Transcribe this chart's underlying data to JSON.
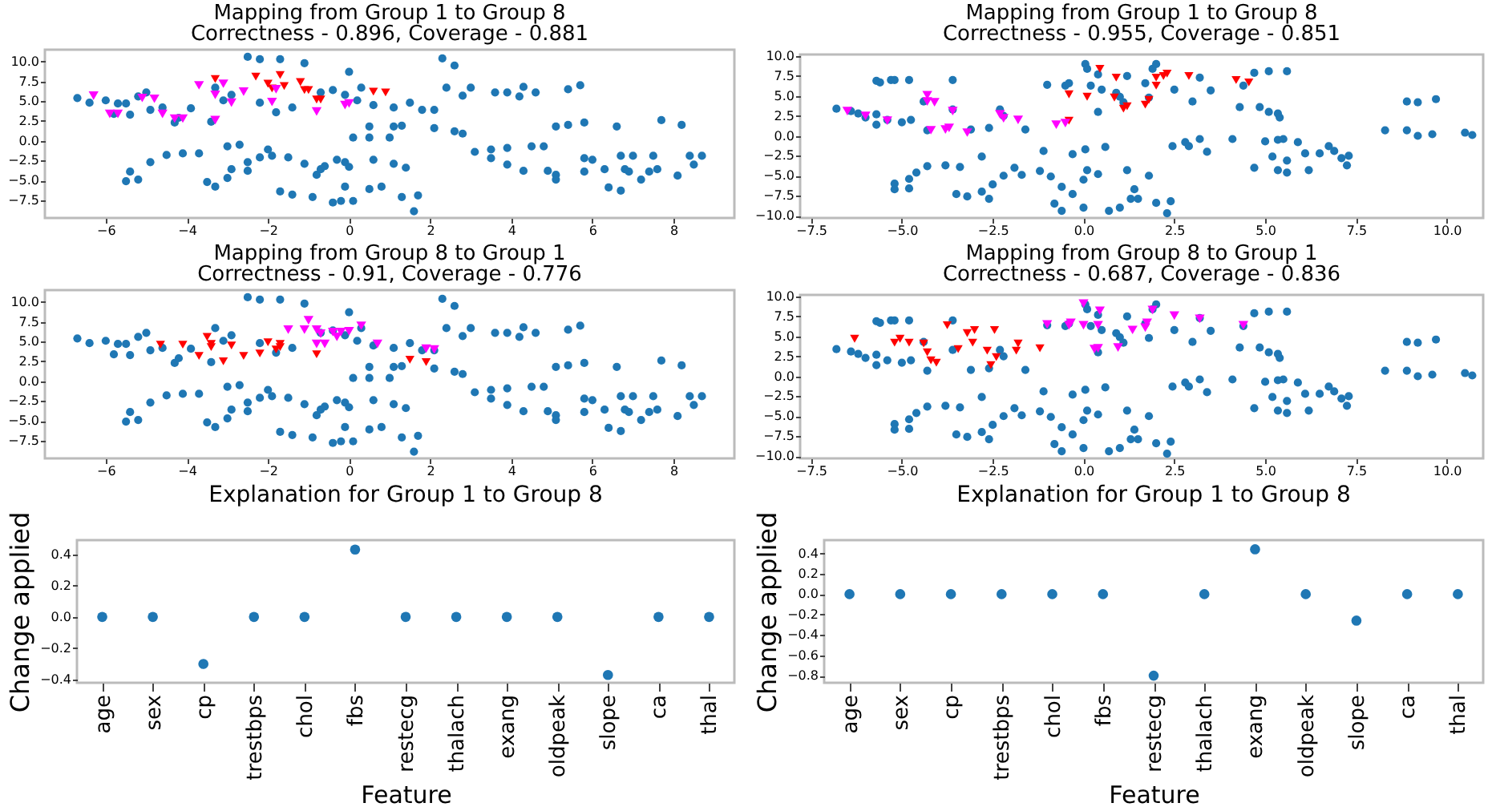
{
  "chart_data": [
    {
      "type": "scatter",
      "title": "Mapping from Group 1 to Group 8",
      "subtitle": "Correctness - 0.896, Coverage - 0.881",
      "xlim": [
        -7.5,
        9.5
      ],
      "xticks": [
        {
          "value": -6,
          "label": "−6"
        },
        {
          "value": -4,
          "label": "−4"
        },
        {
          "value": -2,
          "label": "−2"
        },
        0,
        2,
        4,
        6,
        8
      ],
      "ylim": [
        -9.75,
        11.5
      ],
      "yticks": [
        {
          "value": -7.5,
          "label": "−7.5"
        },
        {
          "value": -5,
          "label": "−5.0"
        },
        {
          "value": -2.5,
          "label": "−2.5"
        },
        {
          "value": 0,
          "label": "0.0"
        },
        2.5,
        {
          "value": 5,
          "label": "5.0"
        },
        7.5,
        {
          "value": 10,
          "label": "10.0"
        }
      ],
      "series": [
        {
          "color": "#1f77b4",
          "marker": "circle",
          "x": [
            -6.7,
            -6.4,
            -6.0,
            -5.7,
            -5.5,
            -5.2,
            -5.0,
            -4.9,
            -4.6,
            -4.3,
            -3.9,
            -3.3,
            -3.1,
            -2.9,
            -2.5,
            -2.2,
            -1.7,
            -2.2,
            -1.8,
            -1.4,
            -1.1,
            -0.7,
            -0.4,
            -0.1,
            0.0,
            0.2,
            0.3,
            0.6,
            1.1,
            1.5,
            1.8,
            2.1,
            2.3,
            2.6,
            2.8,
            3.0,
            2.4,
            3.6,
            3.9,
            4.2,
            4.3,
            4.6,
            5.4,
            5.7,
            0.5,
            1.1,
            1.3,
            1.0,
            0.5,
            0.1,
            2.1,
            2.6,
            2.8,
            5.1,
            5.4,
            5.8,
            6.6,
            7.7,
            8.2,
            -5.4,
            -5.8,
            -4.2,
            -3.4,
            -5.4,
            -5.2,
            -5.5,
            -4.9,
            -4.5,
            -4.1,
            -3.7,
            -3.5,
            -3.3,
            -3.0,
            -3.0,
            -2.7,
            -2.9,
            -2.5,
            -2.5,
            -2.2,
            -1.9,
            -2.0,
            -1.5,
            -1.7,
            -1.4,
            -1.1,
            -0.8,
            -0.7,
            -0.6,
            -0.3,
            -0.1,
            0.0,
            -0.4,
            -0.2,
            0.1,
            -0.9,
            -0.1,
            0.5,
            0.8,
            0.6,
            1.1,
            1.4,
            1.3,
            1.7,
            1.6,
            3.1,
            3.5,
            3.9,
            3.5,
            3.9,
            4.3,
            4.5,
            4.8,
            4.9,
            5.1,
            5.1,
            5.8,
            5.8,
            6.0,
            6.3,
            6.4,
            6.7,
            6.7,
            7.0,
            6.9,
            7.2,
            7.4,
            7.6,
            8.1,
            8.4,
            8.7,
            8.5,
            6.8,
            7.5
          ],
          "values": [
            5.4,
            4.8,
            5.1,
            4.7,
            4.7,
            5.6,
            6.1,
            3.9,
            4.2,
            2.3,
            4.1,
            6.7,
            5.1,
            5.8,
            10.6,
            10.3,
            10.3,
            4.8,
            3.6,
            4.2,
            9.8,
            6.1,
            6.4,
            5.8,
            8.7,
            5.1,
            6.7,
            4.5,
            4.2,
            4.8,
            3.9,
            3.9,
            10.4,
            9.5,
            5.7,
            6.7,
            6.7,
            6.1,
            6.1,
            5.6,
            6.8,
            6.1,
            6.5,
            7.0,
            1.8,
            1.8,
            1.9,
            0.4,
            0.4,
            0.4,
            1.6,
            1.2,
            0.9,
            1.8,
            2.0,
            2.3,
            1.8,
            2.6,
            2.0,
            3.3,
            3.4,
            2.9,
            2.4,
            -3.9,
            -4.9,
            -5.1,
            -2.7,
            -1.8,
            -1.6,
            -1.6,
            -5.2,
            -5.8,
            -4.7,
            -0.7,
            -0.5,
            -3.6,
            -3.8,
            -2.7,
            -2.1,
            -1.9,
            -1.1,
            -2.1,
            -6.4,
            -6.8,
            -2.9,
            -4.3,
            -3.6,
            -3.2,
            -2.4,
            -2.7,
            -3.3,
            -7.8,
            -7.6,
            -7.6,
            -7.1,
            -5.8,
            -6.1,
            -5.8,
            -2.4,
            -2.9,
            -3.4,
            -7.1,
            -6.9,
            -8.9,
            -1.4,
            -1.1,
            -0.9,
            -2.2,
            -3.0,
            -3.8,
            -0.7,
            -0.7,
            -3.8,
            -4.3,
            -4.9,
            -2.2,
            -3.9,
            -2.4,
            -3.6,
            -5.9,
            -6.3,
            -1.9,
            -1.9,
            -3.9,
            -4.9,
            -3.9,
            -3.6,
            -4.4,
            -1.9,
            -1.9,
            -3.0,
            -3.6,
            -1.9
          ]
        },
        {
          "color": "#ff0000",
          "marker": "triangle",
          "x": [
            -3.3,
            -2.3,
            -1.7,
            -2.0,
            -1.7,
            -1.6,
            -1.2,
            -1.1,
            -1.0,
            -0.8,
            -0.7,
            0.6,
            0.9,
            -1.9
          ],
          "values": [
            7.8,
            8.1,
            8.3,
            7.2,
            null,
            6.9,
            7.4,
            6.4,
            6.4,
            5.2,
            5.2,
            6.2,
            6.1,
            6.6
          ]
        },
        {
          "color": "#ff00ff",
          "marker": "triangle",
          "x": [
            -6.3,
            -5.9,
            -5.7,
            -5.1,
            -4.8,
            -4.6,
            -4.3,
            -4.1,
            -3.7,
            -3.3,
            -3.1,
            -3.3,
            -2.9,
            -2.6,
            -1.9,
            -1.8,
            -0.8,
            -0.1,
            0.0
          ],
          "values": [
            5.7,
            3.4,
            3.4,
            5.4,
            5.3,
            3.4,
            2.8,
            2.8,
            7.0,
            5.8,
            7.2,
            2.6,
            4.8,
            6.2,
            4.9,
            6.5,
            3.7,
            4.5,
            4.7
          ]
        }
      ]
    },
    {
      "type": "scatter",
      "title": "Mapping from Group 1 to Group 8",
      "subtitle": "Correctness - 0.955, Coverage - 0.851",
      "xlim": [
        -7.8,
        11
      ],
      "xticks": [
        {
          "value": -7.5,
          "label": "−7.5"
        },
        {
          "value": -5,
          "label": "−5.0"
        },
        {
          "value": -2.5,
          "label": "−2.5"
        },
        {
          "value": 0,
          "label": "0.0"
        },
        2.5,
        {
          "value": 5,
          "label": "5.0"
        },
        7.5,
        {
          "value": 10,
          "label": "10.0"
        }
      ],
      "ylim": [
        -10.3,
        10.2
      ],
      "yticks": [
        {
          "value": -10,
          "label": "−10.0"
        },
        {
          "value": -7.5,
          "label": "−7.5"
        },
        {
          "value": -5,
          "label": "−5.0"
        },
        {
          "value": -2.5,
          "label": "−2.5"
        },
        {
          "value": 0,
          "label": "0.0"
        },
        2.5,
        {
          "value": 5,
          "label": "5.0"
        },
        7.5,
        {
          "value": 10,
          "label": "10.0"
        }
      ],
      "series": [
        {
          "color": "#1f77b4",
          "marker": "circle",
          "x": [
            -6.8,
            -6.4,
            -6.2,
            -6.0,
            -5.7,
            -5.6,
            -5.3,
            -5.2,
            -4.8,
            -5.7,
            -5.7,
            -5.4,
            -5.0,
            -4.75,
            -4.4,
            -4.3,
            -3.6,
            -3.6,
            -3.1,
            -2.6,
            -2.3,
            -2.2,
            -1.6,
            -1.0,
            -0.5,
            -0.4,
            0.05,
            0.1,
            0.4,
            0.2,
            0.5,
            0.4,
            0.9,
            1.0,
            1.1,
            1.2,
            1.9,
            2.0,
            1.7,
            1.8,
            2.5,
            3.2,
            3.5,
            3.0,
            4.4,
            4.3,
            4.7,
            5.1,
            5.6,
            4.85,
            5.1,
            5.35,
            5.4,
            8.9,
            9.2,
            9.7,
            8.3,
            8.9,
            9.2,
            9.6,
            10.5,
            10.7,
            -5.2,
            -5.2,
            -4.8,
            -4.8,
            -4.6,
            -4.3,
            -3.8,
            -3.4,
            -2.8,
            -3.5,
            -3.2,
            -2.8,
            -2.6,
            -2.5,
            -2.2,
            -1.9,
            -1.7,
            -1.2,
            -1.1,
            -0.9,
            -0.6,
            -0.8,
            -0.6,
            -0.3,
            0.05,
            0.1,
            0.0,
            -0.3,
            0.0,
            0.4,
            0.6,
            0.7,
            1.0,
            1.2,
            1.3,
            1.4,
            1.5,
            1.8,
            2.0,
            2.3,
            2.4,
            2.45,
            2.8,
            2.9,
            3.2,
            3.4,
            4.1,
            4.7,
            5.0,
            5.35,
            5.5,
            5.2,
            5.6,
            5.35,
            5.6,
            5.9,
            6.1,
            6.5,
            6.75,
            6.9,
            7.1,
            7.25,
            6.2,
            7.3
          ],
          "values": [
            3.4,
            3.1,
            2.8,
            2.3,
            6.9,
            6.7,
            7.0,
            7.0,
            7.0,
            1.4,
            2.7,
            2.0,
            1.7,
            2.0,
            4.3,
            0.7,
            7.0,
            3.3,
            0.8,
            1.0,
            3.3,
            2.5,
            0.8,
            6.4,
            6.3,
            6.6,
            9.0,
            8.4,
            7.7,
            6.3,
            5.8,
            3.0,
            5.4,
            4.9,
            4.2,
            7.5,
            8.4,
            9.0,
            6.6,
            4.8,
            5.8,
            7.3,
            5.7,
            4.3,
            6.3,
            3.6,
            7.9,
            8.1,
            8.1,
            3.6,
            3.0,
            2.8,
            2.3,
            4.3,
            4.2,
            4.6,
            0.7,
            0.7,
            0.0,
            0.2,
            0.4,
            0.1,
            -6.0,
            -6.7,
            -6.6,
            -5.4,
            -4.6,
            -3.8,
            -3.7,
            -3.9,
            -2.6,
            -7.3,
            -7.6,
            -7.0,
            -7.9,
            -6.1,
            -5.0,
            -4.0,
            -4.9,
            -4.4,
            -1.9,
            -5.1,
            -6.4,
            -8.5,
            -9.4,
            -2.3,
            -1.7,
            -4.3,
            -5.5,
            -7.3,
            -9.0,
            -4.8,
            -1.4,
            -9.4,
            -9.0,
            -4.3,
            -7.9,
            -6.7,
            -7.9,
            -5.0,
            -8.4,
            -9.7,
            -8.2,
            -1.3,
            -0.8,
            -1.3,
            -0.4,
            -2.0,
            -0.4,
            -4.0,
            -0.7,
            -0.5,
            -0.4,
            -2.6,
            -3.1,
            -4.3,
            -4.6,
            -0.8,
            -2.2,
            -2.2,
            -1.3,
            -1.9,
            -2.8,
            -3.7,
            -4.3,
            -2.5
          ]
        },
        {
          "color": "#ff0000",
          "marker": "triangle",
          "x": [
            0.45,
            0.9,
            2.0,
            2.2,
            2.3,
            2.9,
            4.2,
            4.55,
            -0.4,
            0.1,
            0.85,
            1.1,
            1.2,
            1.7,
            1.8,
            2.0,
            -0.4
          ],
          "values": [
            8.4,
            7.3,
            7.3,
            7.5,
            7.8,
            7.5,
            7.0,
            6.7,
            5.2,
            4.9,
            4.8,
            3.4,
            3.7,
            3.9,
            4.5,
            6.3,
            1.9
          ]
        },
        {
          "color": "#ff00ff",
          "marker": "triangle",
          "x": [
            -6.5,
            -6.0,
            -5.4,
            -4.3,
            -4.3,
            -4.1,
            -4.2,
            -3.8,
            -3.7,
            -3.6,
            -3.2,
            -2.3,
            -2.2,
            -1.8,
            -0.75,
            -0.5
          ],
          "values": [
            3.1,
            2.5,
            1.9,
            5.1,
            4.3,
            4.2,
            0.7,
            0.8,
            1.0,
            3.1,
            0.4,
            2.7,
            2.2,
            2.0,
            1.4,
            1.6
          ]
        }
      ]
    },
    {
      "type": "scatter",
      "title": "Mapping from Group 8 to Group 1",
      "subtitle": "Correctness - 0.91, Coverage - 0.776",
      "xlim": [
        -7.5,
        9.5
      ],
      "xticks": [
        {
          "value": -6,
          "label": "−6"
        },
        {
          "value": -4,
          "label": "−4"
        },
        {
          "value": -2,
          "label": "−2"
        },
        0,
        2,
        4,
        6,
        8
      ],
      "ylim": [
        -9.75,
        11.5
      ],
      "yticks": [
        {
          "value": -7.5,
          "label": "−7.5"
        },
        {
          "value": -5,
          "label": "−5.0"
        },
        {
          "value": -2.5,
          "label": "−2.5"
        },
        {
          "value": 0,
          "label": "0.0"
        },
        2.5,
        {
          "value": 5,
          "label": "5.0"
        },
        7.5,
        {
          "value": 10,
          "label": "10.0"
        }
      ],
      "series": [
        {
          "color": "#1f77b4",
          "marker": "circle",
          "x": [
            -6.7,
            -6.4,
            -6.0,
            -5.7,
            -5.5,
            -5.2,
            -5.0,
            -4.9,
            -4.6,
            -4.3,
            -3.9,
            -3.3,
            -3.1,
            -2.9,
            -2.5,
            -2.2,
            -1.7,
            -2.2,
            -1.8,
            -1.4,
            -1.1,
            -0.7,
            -0.4,
            -0.1,
            0.0,
            0.2,
            0.3,
            0.6,
            1.1,
            1.5,
            1.8,
            2.1,
            2.3,
            2.6,
            2.8,
            3.0,
            2.4,
            3.6,
            3.9,
            4.2,
            4.3,
            4.6,
            5.4,
            5.7,
            0.5,
            1.1,
            1.3,
            1.0,
            0.5,
            0.1,
            2.1,
            2.6,
            2.8,
            5.1,
            5.4,
            5.8,
            6.6,
            7.7,
            8.2,
            -5.4,
            -5.8,
            -4.2,
            -3.4,
            -5.4,
            -5.2,
            -5.5,
            -4.9,
            -4.5,
            -4.1,
            -3.7,
            -3.5,
            -3.3,
            -3.0,
            -3.0,
            -2.7,
            -2.9,
            -2.5,
            -2.5,
            -2.2,
            -1.9,
            -2.0,
            -1.5,
            -1.7,
            -1.4,
            -1.1,
            -0.8,
            -0.7,
            -0.6,
            -0.3,
            -0.1,
            0.0,
            -0.4,
            -0.2,
            0.1,
            -0.9,
            -0.1,
            0.5,
            0.8,
            0.6,
            1.1,
            1.4,
            1.3,
            1.7,
            1.6,
            3.1,
            3.5,
            3.9,
            3.5,
            3.9,
            4.3,
            4.5,
            4.8,
            4.9,
            5.1,
            5.1,
            5.8,
            5.8,
            6.0,
            6.3,
            6.4,
            6.7,
            6.7,
            7.0,
            6.9,
            7.2,
            7.4,
            7.6,
            8.1,
            8.4,
            8.7,
            8.5,
            6.8,
            7.5
          ],
          "values": [
            5.4,
            4.8,
            5.1,
            4.7,
            4.7,
            5.6,
            6.1,
            3.9,
            4.2,
            2.3,
            4.1,
            6.7,
            5.1,
            5.8,
            10.6,
            10.3,
            10.3,
            4.8,
            3.6,
            4.2,
            9.8,
            6.1,
            6.4,
            5.8,
            8.7,
            5.1,
            6.7,
            4.5,
            4.2,
            4.8,
            3.9,
            3.9,
            10.4,
            9.5,
            5.7,
            6.7,
            6.7,
            6.1,
            6.1,
            5.6,
            6.8,
            6.1,
            6.5,
            7.0,
            1.8,
            1.8,
            1.9,
            0.4,
            0.4,
            0.4,
            1.6,
            1.2,
            0.9,
            1.8,
            2.0,
            2.3,
            1.8,
            2.6,
            2.0,
            3.3,
            3.4,
            2.9,
            2.4,
            -3.9,
            -4.9,
            -5.1,
            -2.7,
            -1.8,
            -1.6,
            -1.6,
            -5.2,
            -5.8,
            -4.7,
            -0.7,
            -0.5,
            -3.6,
            -3.8,
            -2.7,
            -2.1,
            -1.9,
            -1.1,
            -2.1,
            -6.4,
            -6.8,
            -2.9,
            -4.3,
            -3.6,
            -3.2,
            -2.4,
            -2.7,
            -3.3,
            -7.8,
            -7.6,
            -7.6,
            -7.1,
            -5.8,
            -6.1,
            -5.8,
            -2.4,
            -2.9,
            -3.4,
            -7.1,
            -6.9,
            -8.9,
            -1.4,
            -1.1,
            -0.9,
            -2.2,
            -3.0,
            -3.8,
            -0.7,
            -0.7,
            -3.8,
            -4.3,
            -4.9,
            -2.2,
            -3.9,
            -2.4,
            -3.6,
            -5.9,
            -6.3,
            -1.9,
            -1.9,
            -3.9,
            -4.9,
            -3.9,
            -3.6,
            -4.4,
            -1.9,
            -1.9,
            -3.0,
            -3.6,
            -1.9
          ]
        },
        {
          "color": "#ff0000",
          "marker": "triangle",
          "x": [
            -4.65,
            -4.1,
            -3.7,
            -3.5,
            -3.4,
            -3.4,
            -3.1,
            -2.9,
            -2.6,
            -2.2,
            -2.0,
            -1.7,
            -1.7,
            -1.8,
            -0.8,
            1.5,
            1.9
          ],
          "values": [
            4.6,
            4.6,
            3.2,
            5.6,
            4.7,
            4.3,
            2.5,
            4.5,
            3.2,
            3.5,
            4.9,
            4.3,
            4.7,
            4.0,
            3.4,
            2.7,
            2.4
          ]
        },
        {
          "color": "#ff00ff",
          "marker": "triangle",
          "x": [
            -1.5,
            -1.0,
            -1.1,
            -0.8,
            -0.7,
            -0.4,
            -0.2,
            -0.3,
            0.0,
            -0.8,
            -0.6,
            0.3,
            0.7,
            1.9,
            2.1
          ],
          "values": [
            6.5,
            7.7,
            6.5,
            6.5,
            6.0,
            6.2,
            6.2,
            5.6,
            6.3,
            4.7,
            4.7,
            7.0,
            4.7,
            4.1,
            4.0
          ]
        }
      ]
    },
    {
      "type": "scatter",
      "title": "Mapping from Group 8 to Group 1",
      "subtitle": "Correctness - 0.687, Coverage - 0.836",
      "xlim": [
        -7.8,
        11
      ],
      "xticks": [
        {
          "value": -7.5,
          "label": "−7.5"
        },
        {
          "value": -5,
          "label": "−5.0"
        },
        {
          "value": -2.5,
          "label": "−2.5"
        },
        {
          "value": 0,
          "label": "0.0"
        },
        2.5,
        {
          "value": 5,
          "label": "5.0"
        },
        7.5,
        {
          "value": 10,
          "label": "10.0"
        }
      ],
      "ylim": [
        -10.3,
        10.2
      ],
      "yticks": [
        {
          "value": -10,
          "label": "−10.0"
        },
        {
          "value": -7.5,
          "label": "−7.5"
        },
        {
          "value": -5,
          "label": "−5.0"
        },
        {
          "value": -2.5,
          "label": "−2.5"
        },
        {
          "value": 0,
          "label": "0.0"
        },
        2.5,
        {
          "value": 5,
          "label": "5.0"
        },
        7.5,
        {
          "value": 10,
          "label": "10.0"
        }
      ],
      "series": [
        {
          "color": "#1f77b4",
          "marker": "circle",
          "x": [
            -6.8,
            -6.4,
            -6.2,
            -6.0,
            -5.7,
            -5.6,
            -5.3,
            -5.2,
            -4.8,
            -5.7,
            -5.7,
            -5.4,
            -5.0,
            -4.75,
            -4.4,
            -4.3,
            -3.6,
            -3.6,
            -3.1,
            -2.6,
            -2.3,
            -2.2,
            -1.6,
            -1.0,
            -0.5,
            -0.4,
            0.05,
            0.1,
            0.4,
            0.2,
            0.5,
            0.4,
            0.9,
            1.0,
            1.1,
            1.2,
            1.9,
            2.0,
            1.7,
            1.8,
            2.5,
            3.2,
            3.5,
            3.0,
            4.4,
            4.3,
            4.7,
            5.1,
            5.6,
            4.85,
            5.1,
            5.35,
            5.4,
            8.9,
            9.2,
            9.7,
            8.3,
            8.9,
            9.2,
            9.6,
            10.5,
            10.7,
            -5.2,
            -5.2,
            -4.8,
            -4.8,
            -4.6,
            -4.3,
            -3.8,
            -3.4,
            -2.8,
            -3.5,
            -3.2,
            -2.8,
            -2.6,
            -2.5,
            -2.2,
            -1.9,
            -1.7,
            -1.2,
            -1.1,
            -0.9,
            -0.6,
            -0.8,
            -0.6,
            -0.3,
            0.05,
            0.1,
            0.0,
            -0.3,
            0.0,
            0.4,
            0.6,
            0.7,
            1.0,
            1.2,
            1.3,
            1.4,
            1.5,
            1.8,
            2.0,
            2.3,
            2.4,
            2.45,
            2.8,
            2.9,
            3.2,
            3.4,
            4.1,
            4.7,
            5.0,
            5.35,
            5.5,
            5.2,
            5.6,
            5.35,
            5.6,
            5.9,
            6.1,
            6.5,
            6.75,
            6.9,
            7.1,
            7.25,
            6.2,
            7.3
          ],
          "values": [
            3.4,
            3.1,
            2.8,
            2.3,
            6.9,
            6.7,
            7.0,
            7.0,
            7.0,
            1.4,
            2.7,
            2.0,
            1.7,
            2.0,
            4.3,
            0.7,
            7.0,
            3.3,
            0.8,
            1.0,
            3.3,
            2.5,
            0.8,
            6.4,
            6.3,
            6.6,
            9.0,
            8.4,
            7.7,
            6.3,
            5.8,
            3.0,
            5.4,
            4.9,
            4.2,
            7.5,
            8.4,
            9.0,
            6.6,
            4.8,
            5.8,
            7.3,
            5.7,
            4.3,
            6.3,
            3.6,
            7.9,
            8.1,
            8.1,
            3.6,
            3.0,
            2.8,
            2.3,
            4.3,
            4.2,
            4.6,
            0.7,
            0.7,
            0.0,
            0.2,
            0.4,
            0.1,
            -6.0,
            -6.7,
            -6.6,
            -5.4,
            -4.6,
            -3.8,
            -3.7,
            -3.9,
            -2.6,
            -7.3,
            -7.6,
            -7.0,
            -7.9,
            -6.1,
            -5.0,
            -4.0,
            -4.9,
            -4.4,
            -1.9,
            -5.1,
            -6.4,
            -8.5,
            -9.4,
            -2.3,
            -1.7,
            -4.3,
            -5.5,
            -7.3,
            -9.0,
            -4.8,
            -1.4,
            -9.4,
            -9.0,
            -4.3,
            -7.9,
            -6.7,
            -7.9,
            -5.0,
            -8.4,
            -9.7,
            -8.2,
            -1.3,
            -0.8,
            -1.3,
            -0.4,
            -2.0,
            -0.4,
            -4.0,
            -0.7,
            -0.5,
            -0.4,
            -2.6,
            -3.1,
            -4.3,
            -4.6,
            -0.8,
            -2.2,
            -2.2,
            -1.3,
            -1.9,
            -2.8,
            -3.7,
            -4.3,
            -2.5
          ]
        },
        {
          "color": "#ff0000",
          "marker": "triangle",
          "x": [
            -6.3,
            -5.2,
            -5.05,
            -4.8,
            -4.4,
            -4.3,
            -4.2,
            -4.05,
            -3.75,
            -3.45,
            -3.2,
            -3.0,
            -3.05,
            -2.65,
            -2.55,
            -2.45,
            -2.4,
            -1.85,
            -1.8,
            -1.2
          ],
          "values": [
            4.7,
            4.2,
            4.7,
            4.2,
            4.1,
            3.0,
            2.0,
            1.7,
            6.4,
            3.4,
            5.4,
            5.8,
            4.2,
            3.2,
            1.4,
            5.8,
            2.4,
            3.2,
            4.1,
            3.5
          ]
        },
        {
          "color": "#ff00ff",
          "marker": "triangle",
          "x": [
            -1.0,
            -0.4,
            -0.35,
            0.0,
            0.0,
            0.4,
            0.45,
            0.4,
            0.3,
            0.95,
            1.35,
            1.7,
            1.75,
            1.9,
            2.5,
            3.2,
            4.4
          ],
          "values": [
            6.5,
            6.4,
            6.7,
            9.1,
            6.4,
            6.4,
            8.2,
            3.5,
            3.4,
            3.6,
            5.8,
            6.1,
            6.7,
            8.3,
            7.6,
            7.2,
            6.4
          ]
        }
      ]
    },
    {
      "type": "scatter",
      "title": "Explanation for Group 1 to Group 8",
      "xlabel": "Feature",
      "ylabel": "Change applied",
      "categories": [
        "age",
        "sex",
        "cp",
        "trestbps",
        "chol",
        "fbs",
        "restecg",
        "thalach",
        "exang",
        "oldpeak",
        "slope",
        "ca",
        "thal"
      ],
      "ylim": [
        -0.42,
        0.49
      ],
      "yticks": [
        {
          "value": -0.4,
          "label": "−0.4"
        },
        {
          "value": -0.2,
          "label": "−0.2"
        },
        {
          "value": 0,
          "label": "0.0"
        },
        0.2,
        0.4
      ],
      "series": [
        {
          "color": "#1f77b4",
          "marker": "circle",
          "values": [
            0,
            0,
            -0.3,
            0,
            0,
            0.43,
            0,
            0,
            0,
            0,
            -0.37,
            0,
            0
          ]
        }
      ]
    },
    {
      "type": "scatter",
      "title": "Explanation for Group 1 to Group 8",
      "xlabel": "Feature",
      "ylabel": "Change applied",
      "categories": [
        "age",
        "sex",
        "cp",
        "trestbps",
        "chol",
        "fbs",
        "restecg",
        "thalach",
        "exang",
        "oldpeak",
        "slope",
        "ca",
        "thal"
      ],
      "ylim": [
        -0.87,
        0.53
      ],
      "yticks": [
        {
          "value": -0.8,
          "label": "−0.8"
        },
        {
          "value": -0.6,
          "label": "−0.6"
        },
        {
          "value": -0.4,
          "label": "−0.4"
        },
        {
          "value": -0.2,
          "label": "−0.2"
        },
        {
          "value": 0,
          "label": "0.0"
        },
        0.2,
        0.4
      ],
      "series": [
        {
          "color": "#1f77b4",
          "marker": "circle",
          "values": [
            0,
            0,
            0,
            0,
            0,
            0,
            -0.8,
            0,
            0.44,
            0,
            -0.26,
            0,
            0
          ]
        }
      ]
    }
  ]
}
